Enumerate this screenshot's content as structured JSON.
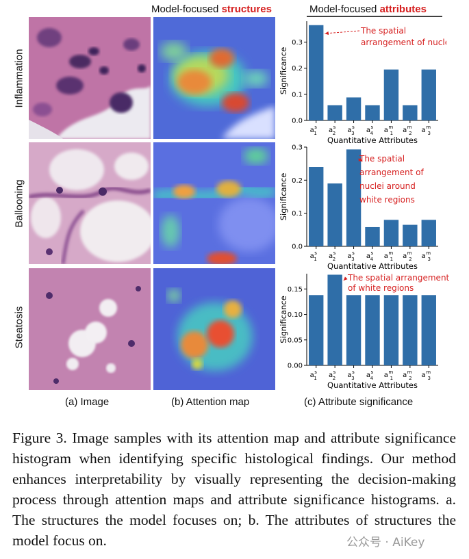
{
  "headers": {
    "col_structures_prefix": "Model-focused ",
    "col_structures_accent": "structures",
    "col_attributes_prefix": "Model-focused ",
    "col_attributes_accent": "attributes"
  },
  "rows": [
    {
      "label": "Inflammation"
    },
    {
      "label": "Ballooning"
    },
    {
      "label": "Steatosis"
    }
  ],
  "subcaptions": {
    "a": "(a) Image",
    "b": "(b) Attention map",
    "c": "(c) Attribute significance"
  },
  "colors": {
    "bar": "#2f6ea8",
    "accent": "#d62020",
    "tissue_pink": "#c57aa8",
    "nuclei": "#4a2a6a"
  },
  "chart_data": [
    {
      "type": "bar",
      "categories": [
        "a1s",
        "a2s",
        "a3s",
        "a4s",
        "a1m",
        "a2m",
        "a3m"
      ],
      "values": [
        0.365,
        0.058,
        0.088,
        0.058,
        0.195,
        0.058,
        0.195
      ],
      "xlabel": "Quantitative Attributes",
      "ylabel": "Significance",
      "ylim": [
        0,
        0.38
      ],
      "yticks": [
        "0.0",
        "0.1",
        "0.2",
        "0.3"
      ],
      "annotation": [
        "The spatial",
        "arrangement of nuclei"
      ],
      "annotated_category": "a1s"
    },
    {
      "type": "bar",
      "categories": [
        "a1s",
        "a2s",
        "a3s",
        "a4s",
        "a1m",
        "a2m",
        "a3m"
      ],
      "values": [
        0.24,
        0.19,
        0.293,
        0.058,
        0.08,
        0.065,
        0.08
      ],
      "xlabel": "Quantitative Attributes",
      "ylabel": "Significance",
      "ylim": [
        0,
        0.3
      ],
      "yticks": [
        "0.0",
        "0.1",
        "0.2",
        "0.3"
      ],
      "annotation": [
        "The spatial",
        "arrangement of",
        "nuclei around",
        "white regions"
      ],
      "annotated_category": "a3s"
    },
    {
      "type": "bar",
      "categories": [
        "a1s",
        "a2s",
        "a3s",
        "a4s",
        "a1m",
        "a2m",
        "a3m"
      ],
      "values": [
        0.138,
        0.178,
        0.138,
        0.138,
        0.138,
        0.138,
        0.138
      ],
      "xlabel": "Quantitative Attributes",
      "ylabel": "Significance",
      "ylim": [
        0,
        0.18
      ],
      "yticks": [
        "0.00",
        "0.05",
        "0.10",
        "0.15"
      ],
      "annotation": [
        "The spatial arrangement",
        "of  white regions"
      ],
      "annotated_category": "a2s"
    }
  ],
  "caption": "Figure 3. Image samples with its attention map and attribute significance histogram when identifying specific histological findings. Our method enhances interpretability by visually representing the decision-making process through attention maps and attribute significance histograms. a. The structures the model focuses on; b. The attributes of structures the model focus on.",
  "watermark": "公众号 · AiKey"
}
